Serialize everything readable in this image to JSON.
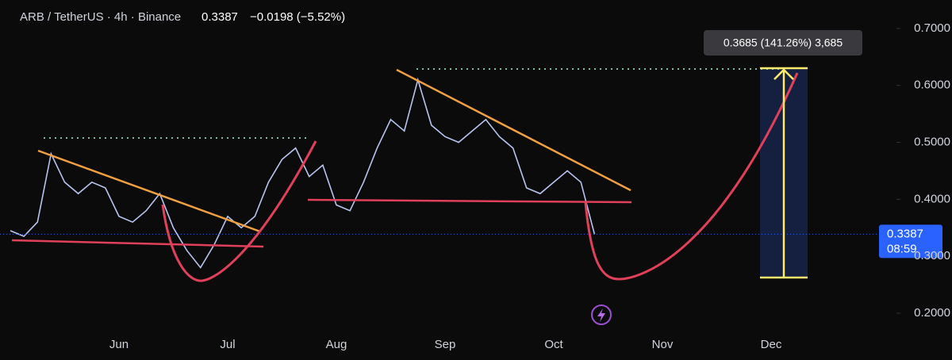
{
  "header": {
    "symbol": "ARB / TetherUS · 4h · Binance",
    "last": 0.3387,
    "change": "−0.0198 (−5.52%)"
  },
  "chart_data": {
    "type": "line",
    "categories": [
      null,
      null,
      null,
      null,
      null,
      null,
      null,
      null,
      "Jun",
      null,
      null,
      null,
      null,
      null,
      null,
      null,
      "Jul",
      null,
      null,
      null,
      null,
      null,
      null,
      null,
      "Aug",
      null,
      null,
      null,
      null,
      null,
      null,
      null,
      "Sep",
      null,
      null,
      null,
      null,
      null,
      null,
      null,
      "Oct",
      null,
      null,
      null,
      null,
      null,
      null,
      null,
      "Nov",
      null,
      null,
      null,
      null,
      null,
      null,
      null,
      "Dec",
      null,
      null,
      null,
      null,
      null,
      null,
      null
    ],
    "series": [
      {
        "name": "ARB / TetherUS",
        "color": "#b8c4f0",
        "values": [
          0.345,
          0.335,
          0.36,
          0.48,
          0.43,
          0.41,
          0.43,
          0.42,
          0.37,
          0.36,
          0.38,
          0.41,
          0.35,
          0.31,
          0.28,
          0.32,
          0.37,
          0.35,
          0.37,
          0.43,
          0.47,
          0.49,
          0.44,
          0.46,
          0.39,
          0.38,
          0.43,
          0.49,
          0.54,
          0.52,
          0.61,
          0.53,
          0.51,
          0.5,
          0.52,
          0.54,
          0.51,
          0.49,
          0.42,
          0.41,
          0.43,
          0.45,
          0.43,
          0.3387,
          null,
          null,
          null,
          null,
          null,
          null,
          null,
          null,
          null,
          null,
          null,
          null,
          null,
          null,
          null,
          null,
          null,
          null,
          null,
          null
        ]
      }
    ],
    "ylim": [
      0.17,
      0.75
    ],
    "yticks": [
      {
        "value": 0.2,
        "label": "0.2000"
      },
      {
        "value": 0.3,
        "label": "0.3000"
      },
      {
        "value": 0.4,
        "label": "0.4000"
      },
      {
        "value": 0.5,
        "label": "0.5000"
      },
      {
        "value": 0.6,
        "label": "0.6000"
      },
      {
        "value": 0.7,
        "label": "0.7000"
      }
    ],
    "measure_label": "0.3685 (141.26%) 3,685",
    "countdown": "08:59"
  }
}
